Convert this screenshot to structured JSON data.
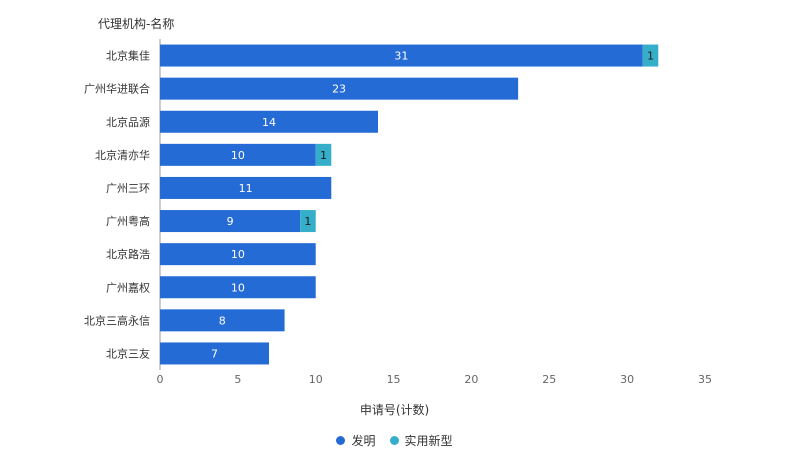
{
  "chart_data": {
    "type": "bar",
    "orientation": "horizontal",
    "stacked": true,
    "ylabel": "代理机构-名称",
    "xlabel": "申请号(计数)",
    "categories": [
      "北京集佳",
      "广州华进联合",
      "北京品源",
      "北京清亦华",
      "广州三环",
      "广州粤高",
      "北京路浩",
      "广州嘉权",
      "北京三高永信",
      "北京三友"
    ],
    "series": [
      {
        "name": "发明",
        "color": "#256bd6",
        "values": [
          31,
          23,
          14,
          10,
          11,
          9,
          10,
          10,
          8,
          7
        ]
      },
      {
        "name": "实用新型",
        "color": "#35aec9",
        "values": [
          1,
          0,
          0,
          1,
          0,
          1,
          0,
          0,
          0,
          0
        ]
      }
    ],
    "xlim": [
      0,
      35
    ],
    "xticks": [
      0,
      5,
      10,
      15,
      20,
      25,
      30,
      35
    ],
    "grid": false,
    "legend_position": "bottom"
  }
}
